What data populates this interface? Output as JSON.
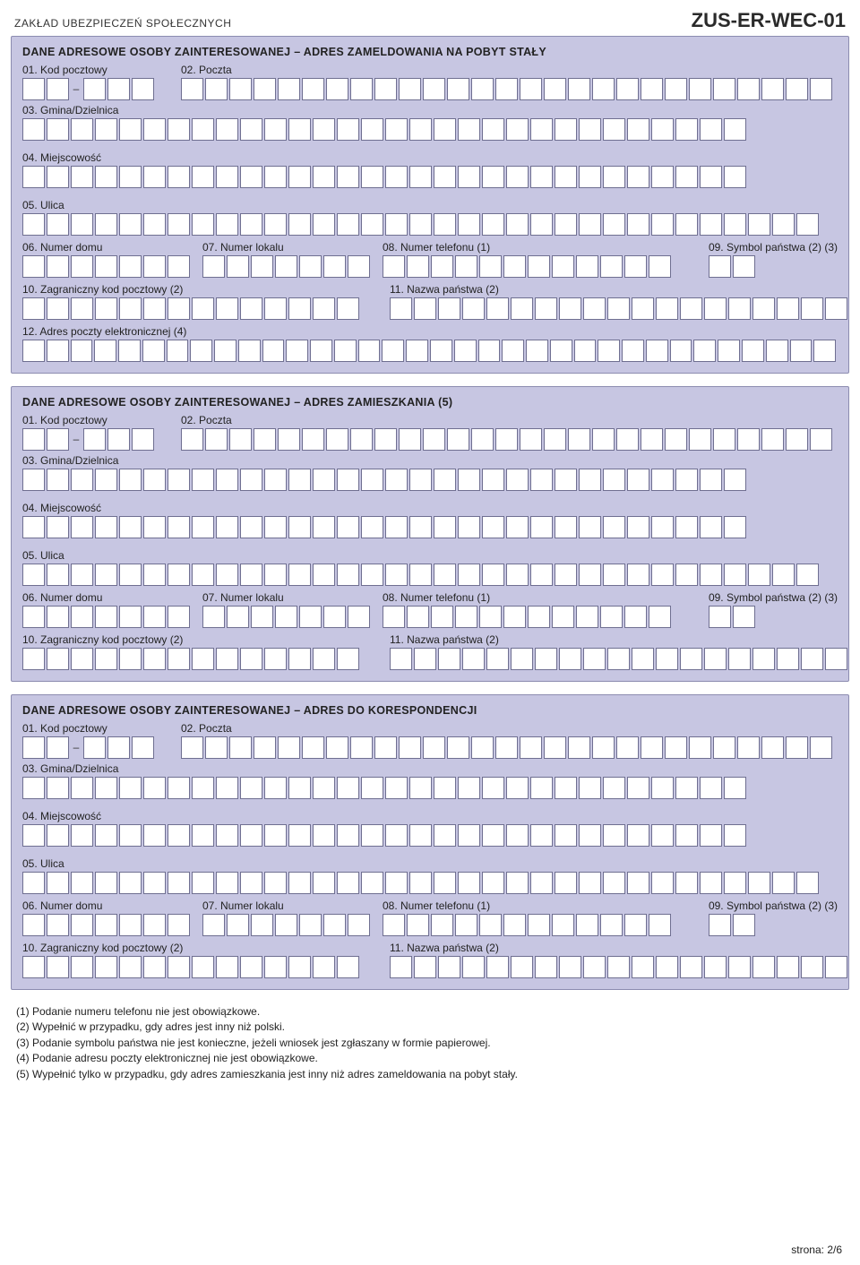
{
  "header": {
    "org": "ZAKŁAD UBEZPIECZEŃ SPOŁECZNYCH",
    "formCode": "ZUS-ER-WEC-01"
  },
  "sections": [
    {
      "title": "DANE ADRESOWE OSOBY ZAINTERESOWANEJ – ADRES ZAMELDOWANIA NA POBYT STAŁY",
      "hasEmail": true
    },
    {
      "title": "DANE ADRESOWE OSOBY ZAINTERESOWANEJ – ADRES ZAMIESZKANIA (5)",
      "hasEmail": false
    },
    {
      "title": "DANE ADRESOWE OSOBY ZAINTERESOWANEJ – ADRES DO KORESPONDENCJI",
      "hasEmail": false
    }
  ],
  "labels": {
    "f01": "01. Kod pocztowy",
    "f02": "02. Poczta",
    "f03": "03. Gmina/Dzielnica",
    "f04": "04. Miejscowość",
    "f05": "05. Ulica",
    "f06": "06. Numer domu",
    "f07": "07. Numer lokalu",
    "f08": "08. Numer telefonu (1)",
    "f09": "09. Symbol państwa (2) (3)",
    "f10": "10. Zagraniczny kod pocztowy (2)",
    "f11": "11. Nazwa państwa (2)",
    "f12": "12. Adres poczty elektronicznej (4)"
  },
  "cellCounts": {
    "kodA": 2,
    "kodB": 3,
    "poczta": 27,
    "gmina": 30,
    "miejscowosc": 30,
    "ulica": 33,
    "numerDomu": 7,
    "numerLokalu": 7,
    "telefon": 12,
    "symbol": 2,
    "zagranicznyKod": 14,
    "nazwaPanstwa": 19,
    "email": 34
  },
  "footnotes": [
    "(1)  Podanie numeru telefonu nie jest obowiązkowe.",
    "(2)  Wypełnić w przypadku, gdy adres jest inny niż polski.",
    "(3)  Podanie symbolu państwa nie jest konieczne, jeżeli wniosek jest zgłaszany w formie papierowej.",
    "(4)  Podanie adresu poczty elektronicznej nie jest obowiązkowe.",
    "(5)  Wypełnić tylko w przypadku, gdy adres zamieszkania jest inny niż adres zameldowania na pobyt stały."
  ],
  "pageNumber": "strona: 2/6",
  "dash": "–"
}
